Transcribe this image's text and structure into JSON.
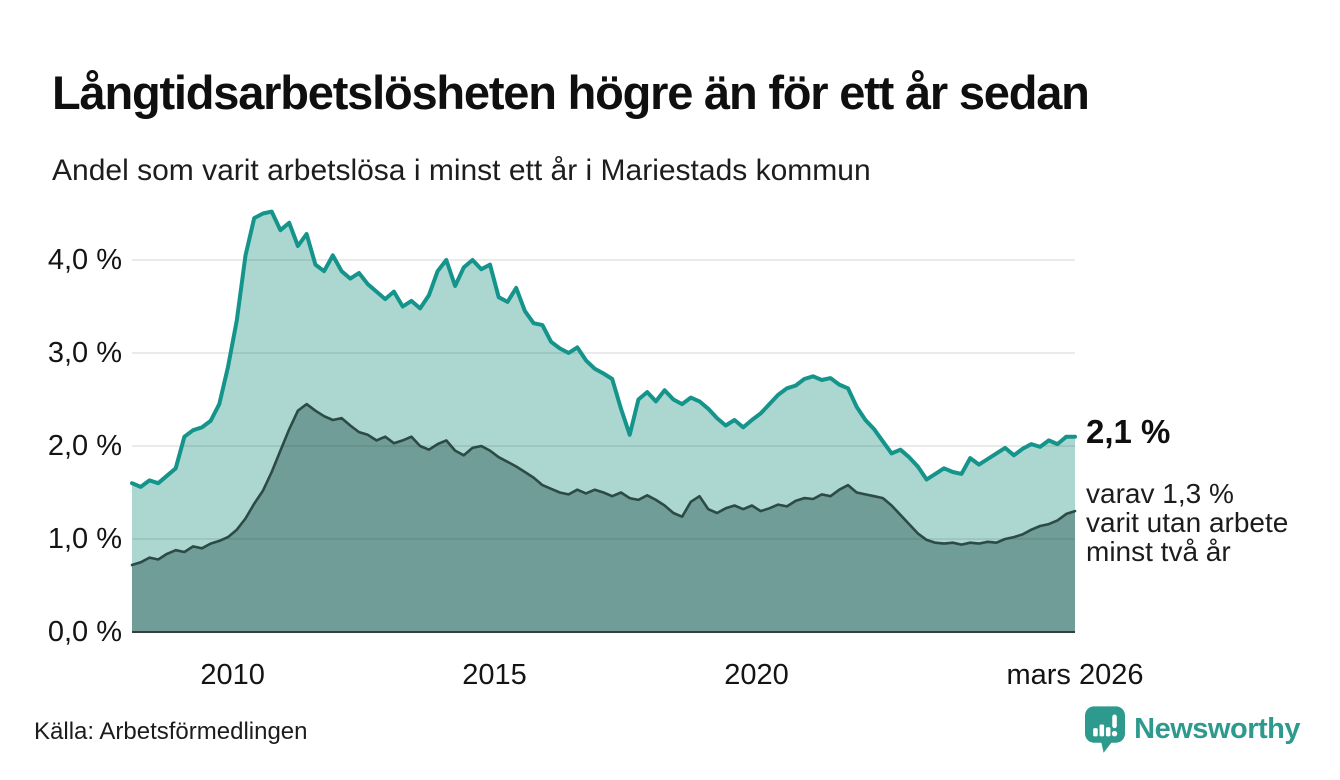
{
  "header": {
    "title": "Långtidsarbetslösheten högre än för ett år sedan",
    "subtitle": "Andel som varit arbetslösa i minst ett år i Mariestads kommun"
  },
  "annotations": {
    "latest_value": "2,1 %",
    "secondary_lines": [
      "varav 1,3 %",
      "varit utan arbete",
      "minst två år"
    ]
  },
  "footer": {
    "source": "Källa: Arbetsförmedlingen",
    "brand": "Newsworthy"
  },
  "colors": {
    "teal_line": "#14948a",
    "teal_fill": "#abd7d0",
    "dark_line": "#2d4b46",
    "dark_fill": "#709d97",
    "gridline": "rgba(60,60,60,0.14)",
    "axis": "#3c3c3c",
    "brand_teal": "#2e9a8e"
  },
  "chart_data": {
    "type": "area",
    "title": "Långtidsarbetslösheten högre än för ett år sedan",
    "subtitle": "Andel som varit arbetslösa i minst ett år i Mariestads kommun",
    "xlabel": "",
    "ylabel": "",
    "xlim": [
      2008.08,
      2026.08
    ],
    "ylim": [
      0,
      4.7
    ],
    "grid": true,
    "x_start": 2008.08,
    "x_end": 2026.08,
    "points_per_series": 109,
    "x_unit": "year (monthly series, sampled every 2 months)",
    "y_unit": "percent",
    "y_ticks": [
      {
        "value": 0,
        "label": "0,0 %"
      },
      {
        "value": 1,
        "label": "1,0 %"
      },
      {
        "value": 2,
        "label": "2,0 %"
      },
      {
        "value": 3,
        "label": "3,0 %"
      },
      {
        "value": 4,
        "label": "4,0 %"
      }
    ],
    "x_ticks": [
      {
        "value": 2010,
        "label": "2010"
      },
      {
        "value": 2015,
        "label": "2015"
      },
      {
        "value": 2020,
        "label": "2020"
      },
      {
        "value": 2026.08,
        "label": "mars 2026"
      }
    ],
    "series": [
      {
        "name": "Arbetslösa minst ett år",
        "latest_label": "2,1 %",
        "latest_value": 2.1,
        "values": [
          1.6,
          1.56,
          1.63,
          1.6,
          1.68,
          1.76,
          2.1,
          2.17,
          2.2,
          2.27,
          2.45,
          2.85,
          3.35,
          4.05,
          4.45,
          4.5,
          4.52,
          4.32,
          4.4,
          4.15,
          4.28,
          3.95,
          3.88,
          4.05,
          3.88,
          3.8,
          3.86,
          3.74,
          3.66,
          3.58,
          3.66,
          3.5,
          3.56,
          3.48,
          3.62,
          3.88,
          4.0,
          3.72,
          3.92,
          4.0,
          3.9,
          3.95,
          3.6,
          3.55,
          3.7,
          3.45,
          3.32,
          3.3,
          3.12,
          3.05,
          3.0,
          3.06,
          2.92,
          2.83,
          2.78,
          2.72,
          2.4,
          2.12,
          2.5,
          2.58,
          2.48,
          2.6,
          2.5,
          2.45,
          2.52,
          2.48,
          2.4,
          2.3,
          2.22,
          2.28,
          2.2,
          2.28,
          2.35,
          2.45,
          2.55,
          2.62,
          2.65,
          2.72,
          2.75,
          2.71,
          2.73,
          2.66,
          2.62,
          2.42,
          2.28,
          2.18,
          2.05,
          1.92,
          1.96,
          1.88,
          1.78,
          1.64,
          1.7,
          1.76,
          1.72,
          1.7,
          1.87,
          1.8,
          1.86,
          1.92,
          1.98,
          1.9,
          1.97,
          2.02,
          1.99,
          2.06,
          2.02,
          2.1,
          2.1
        ]
      },
      {
        "name": "Varit utan arbete minst två år",
        "latest_label": "1,3 %",
        "latest_value": 1.3,
        "values": [
          0.72,
          0.75,
          0.8,
          0.78,
          0.84,
          0.88,
          0.86,
          0.92,
          0.9,
          0.95,
          0.98,
          1.02,
          1.1,
          1.22,
          1.38,
          1.52,
          1.72,
          1.95,
          2.18,
          2.38,
          2.45,
          2.38,
          2.32,
          2.28,
          2.3,
          2.22,
          2.15,
          2.12,
          2.06,
          2.1,
          2.03,
          2.06,
          2.1,
          2.0,
          1.96,
          2.02,
          2.06,
          1.95,
          1.9,
          1.98,
          2.0,
          1.95,
          1.88,
          1.83,
          1.78,
          1.72,
          1.66,
          1.58,
          1.54,
          1.5,
          1.48,
          1.53,
          1.49,
          1.53,
          1.5,
          1.46,
          1.5,
          1.44,
          1.42,
          1.47,
          1.42,
          1.36,
          1.28,
          1.24,
          1.4,
          1.46,
          1.32,
          1.28,
          1.33,
          1.36,
          1.32,
          1.36,
          1.3,
          1.33,
          1.37,
          1.35,
          1.41,
          1.44,
          1.43,
          1.48,
          1.46,
          1.53,
          1.58,
          1.5,
          1.48,
          1.46,
          1.44,
          1.36,
          1.26,
          1.16,
          1.06,
          0.99,
          0.96,
          0.95,
          0.96,
          0.94,
          0.96,
          0.95,
          0.97,
          0.96,
          1.0,
          1.02,
          1.05,
          1.1,
          1.14,
          1.16,
          1.2,
          1.27,
          1.3
        ]
      }
    ]
  }
}
